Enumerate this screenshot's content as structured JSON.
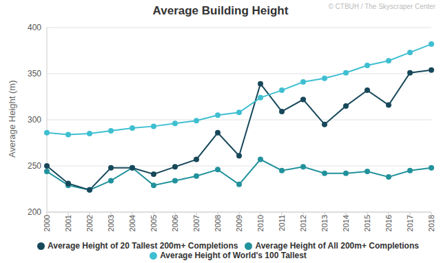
{
  "chart_data": {
    "type": "line",
    "title": "Average Building Height",
    "y_label": "Average Height (m)",
    "annotations": [
      "© CTBUH / The Skyscraper Center"
    ],
    "categories": [
      "2000",
      "2001",
      "2002",
      "2003",
      "2004",
      "2005",
      "2006",
      "2007",
      "2008",
      "2009",
      "2010",
      "2011",
      "2012",
      "2013",
      "2014",
      "2015",
      "2016",
      "2017",
      "2018"
    ],
    "series": [
      {
        "name": "Average Height of All 200m+ Completions",
        "color": "#21929c",
        "marker": "circle",
        "values": [
          244,
          229,
          224,
          234,
          248,
          229,
          234,
          239,
          246,
          230,
          257,
          245,
          249,
          242,
          242,
          244,
          238,
          245,
          248
        ]
      },
      {
        "name": "Average Height of 20 Tallest 200m+ Completions",
        "color": "#17485a",
        "marker": "circle",
        "values": [
          250,
          231,
          224,
          248,
          248,
          241,
          249,
          257,
          286,
          261,
          339,
          309,
          322,
          295,
          315,
          332,
          316,
          351,
          354
        ]
      },
      {
        "name": "Average Height of World's 100 Tallest",
        "color": "#3fbfd1",
        "marker": "circle",
        "values": [
          286,
          284,
          285,
          288,
          291,
          293,
          296,
          299,
          305,
          308,
          324,
          332,
          341,
          345,
          351,
          359,
          364,
          373,
          382
        ]
      }
    ],
    "ylim": [
      200,
      400
    ],
    "yticks": [
      200,
      250,
      300,
      350,
      400
    ],
    "grid": true,
    "legend": "bottom"
  }
}
